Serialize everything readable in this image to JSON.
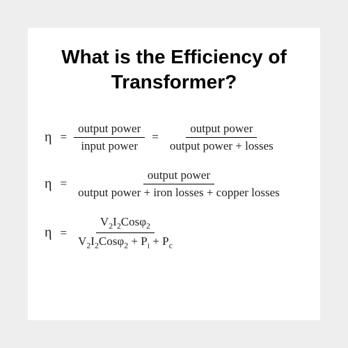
{
  "page": {
    "background_color": "#eeeeee",
    "card_color": "#ffffff",
    "text_color": "#000000"
  },
  "title": {
    "line1": "What is the Efficiency of",
    "line2": "Transformer?",
    "font_family": "Arial",
    "font_weight": 900,
    "font_size_pt": 21
  },
  "symbols": {
    "eta": "η",
    "equals": "="
  },
  "equations": [
    {
      "type": "double_fraction",
      "frac1": {
        "numerator": "output power",
        "denominator": "input power"
      },
      "frac2": {
        "numerator": "output power",
        "denominator": "output power + losses"
      }
    },
    {
      "type": "single_fraction",
      "frac": {
        "numerator": "output power",
        "denominator": "output power + iron losses + copper losses"
      }
    },
    {
      "type": "symbolic_fraction",
      "frac": {
        "numerator_html": "V<sub>2</sub>I<sub>2</sub>Cosφ<sub>2</sub>",
        "denominator_html": "V<sub>2</sub>I<sub>2</sub>Cosφ<sub>2</sub> + P<sub>i</sub> + P<sub>c</sub>"
      }
    }
  ],
  "style": {
    "body_font_family": "Georgia",
    "equation_font_size_pt": 13,
    "fraction_rule_color": "#000000"
  }
}
